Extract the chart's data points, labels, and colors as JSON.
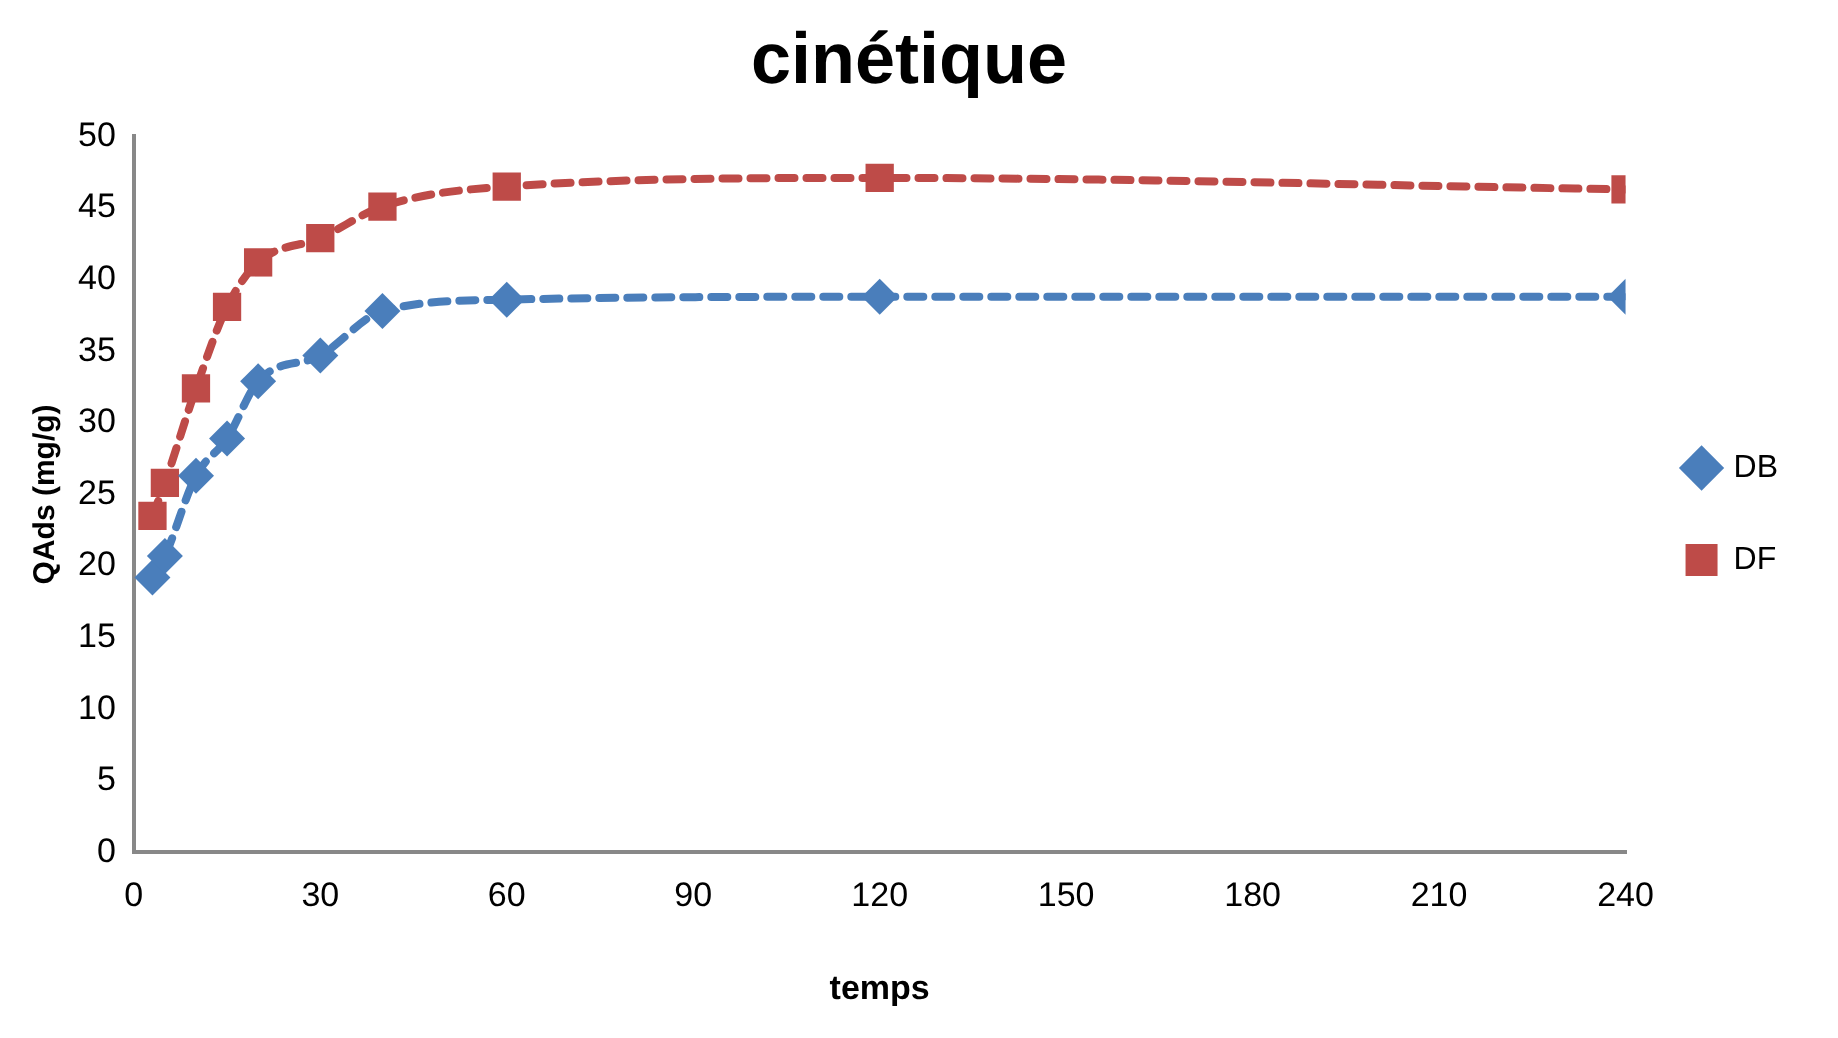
{
  "chart_data": {
    "type": "line",
    "title": "cinétique",
    "xlabel": "temps",
    "ylabel": "QAds (mg/g)",
    "x": [
      3,
      5,
      10,
      15,
      20,
      30,
      40,
      60,
      120,
      240
    ],
    "series": [
      {
        "name": "DB",
        "color": "#4a7ebb",
        "marker": "diamond",
        "values": [
          19.2,
          20.7,
          26.3,
          28.9,
          32.9,
          34.7,
          37.8,
          38.6,
          38.8,
          38.8
        ]
      },
      {
        "name": "DF",
        "color": "#be4b48",
        "marker": "square",
        "values": [
          23.5,
          25.8,
          32.4,
          38.1,
          41.2,
          42.9,
          45.1,
          46.5,
          47.1,
          46.3
        ]
      }
    ],
    "xlim": [
      0,
      240
    ],
    "xticks": [
      0,
      30,
      60,
      90,
      120,
      150,
      180,
      210,
      240
    ],
    "ylim": [
      0,
      50
    ],
    "yticks": [
      0,
      5,
      10,
      15,
      20,
      25,
      30,
      35,
      40,
      45,
      50
    ],
    "grid": false,
    "legend": "right",
    "line_style": "dashed"
  }
}
